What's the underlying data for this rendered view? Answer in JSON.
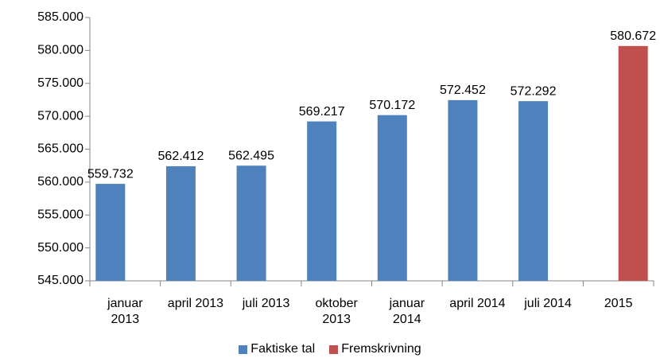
{
  "chart_data": {
    "type": "bar",
    "categories": [
      "januar 2013",
      "april 2013",
      "juli 2013",
      "oktober 2013",
      "januar 2014",
      "april 2014",
      "juli 2014",
      "2015"
    ],
    "series": [
      {
        "name": "Faktiske tal",
        "color": "#4f81bd",
        "values": [
          559732,
          562412,
          562495,
          569217,
          570172,
          572452,
          572292,
          null
        ],
        "value_labels": [
          "559.732",
          "562.412",
          "562.495",
          "569.217",
          "570.172",
          "572.452",
          "572.292",
          null
        ]
      },
      {
        "name": "Fremskrivning",
        "color": "#c0504d",
        "values": [
          null,
          null,
          null,
          null,
          null,
          null,
          null,
          580672
        ],
        "value_labels": [
          null,
          null,
          null,
          null,
          null,
          null,
          null,
          "580.672"
        ]
      }
    ],
    "ylim": [
      545000,
      585000
    ],
    "yticks": [
      {
        "value": 545000,
        "label": "545.000"
      },
      {
        "value": 550000,
        "label": "550.000"
      },
      {
        "value": 555000,
        "label": "555.000"
      },
      {
        "value": 560000,
        "label": "560.000"
      },
      {
        "value": 565000,
        "label": "565.000"
      },
      {
        "value": 570000,
        "label": "570.000"
      },
      {
        "value": 575000,
        "label": "575.000"
      },
      {
        "value": 580000,
        "label": "580.000"
      },
      {
        "value": 585000,
        "label": "585.000"
      }
    ],
    "grid": false,
    "legend": "bottom"
  }
}
